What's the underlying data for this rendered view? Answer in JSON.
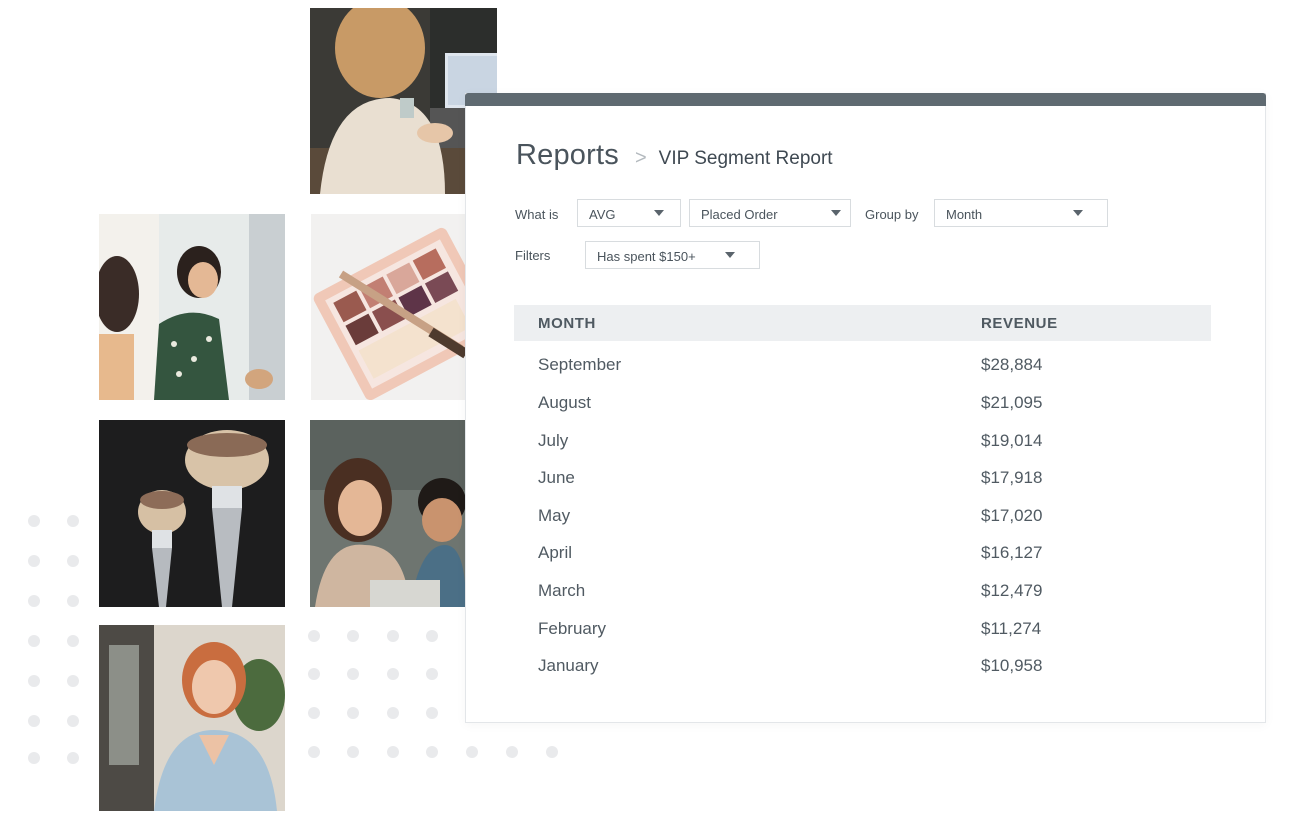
{
  "header": {
    "title": "Reports",
    "breadcrumb_separator": ">",
    "subtitle": "VIP Segment Report"
  },
  "controls": {
    "what_is_label": "What is",
    "aggregate": "AVG",
    "event": "Placed Order",
    "group_by_label": "Group by",
    "group_by": "Month",
    "filters_label": "Filters",
    "filter": "Has spent $150+"
  },
  "table": {
    "columns": [
      "MONTH",
      "REVENUE"
    ],
    "rows": [
      {
        "month": "September",
        "revenue": "$28,884"
      },
      {
        "month": "August",
        "revenue": "$21,095"
      },
      {
        "month": "July",
        "revenue": "$19,014"
      },
      {
        "month": "June",
        "revenue": "$17,918"
      },
      {
        "month": "May",
        "revenue": "$17,020"
      },
      {
        "month": "April",
        "revenue": "$16,127"
      },
      {
        "month": "March",
        "revenue": "$12,479"
      },
      {
        "month": "February",
        "revenue": "$11,274"
      },
      {
        "month": "January",
        "revenue": "$10,958"
      }
    ]
  },
  "colors": {
    "topbar": "#5f6a71",
    "header_bg": "#edeff1",
    "text": "#4a545c",
    "dots": "#e9eaec"
  },
  "photos": [
    {
      "icon": "woman-laptop-photo"
    },
    {
      "icon": "shopping-women-photo"
    },
    {
      "icon": "eyeshadow-palette-photo"
    },
    {
      "icon": "makeup-brushes-photo"
    },
    {
      "icon": "laughing-friends-photo"
    },
    {
      "icon": "smiling-woman-photo"
    }
  ]
}
